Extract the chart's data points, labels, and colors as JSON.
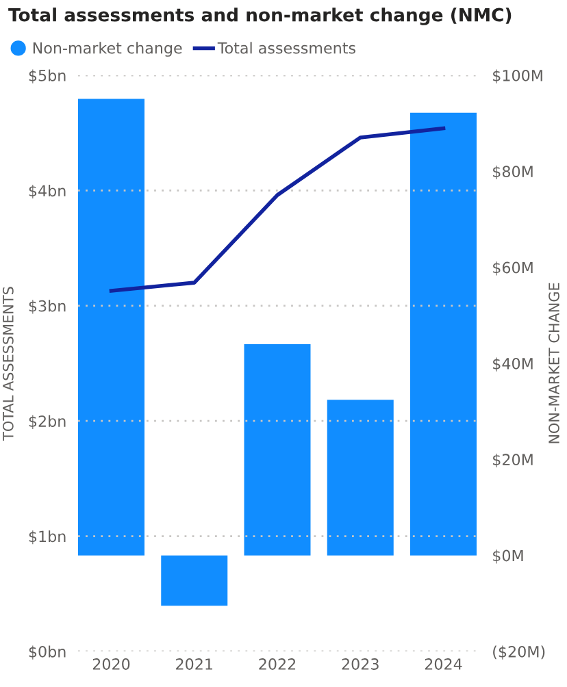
{
  "chart_data": {
    "type": "bar",
    "title": "Total assessments and non-market change (NMC)",
    "categories": [
      "2020",
      "2021",
      "2022",
      "2023",
      "2024"
    ],
    "series": [
      {
        "name": "Non-market change",
        "axis": "y2",
        "color": "#118dff",
        "values": [
          95.1,
          -10.5,
          44,
          32.4,
          92.2
        ]
      },
      {
        "name": "Total assessments",
        "type": "line",
        "axis": "y",
        "color": "#12239e",
        "values": [
          3.13,
          3.2,
          3.96,
          4.46,
          4.54
        ]
      }
    ],
    "ylabel": "TOTAL ASSESSMENTS",
    "y2label": "NON-MARKET CHANGE",
    "ylim": [
      0,
      5
    ],
    "yticks": [
      {
        "value": 0,
        "label": "$0bn"
      },
      {
        "value": 1,
        "label": "$1bn"
      },
      {
        "value": 2,
        "label": "$2bn"
      },
      {
        "value": 3,
        "label": "$3bn"
      },
      {
        "value": 4,
        "label": "$4bn"
      },
      {
        "value": 5,
        "label": "$5bn"
      }
    ],
    "y2lim": [
      -20,
      100
    ],
    "y2ticks": [
      {
        "value": -20,
        "label": "($20M)"
      },
      {
        "value": 0,
        "label": "$0M"
      },
      {
        "value": 20,
        "label": "$20M"
      },
      {
        "value": 40,
        "label": "$40M"
      },
      {
        "value": 60,
        "label": "$60M"
      },
      {
        "value": 80,
        "label": "$80M"
      },
      {
        "value": 100,
        "label": "$100M"
      }
    ],
    "grid": "y",
    "legend": "top left",
    "marker": "none",
    "line_style": "solid"
  }
}
